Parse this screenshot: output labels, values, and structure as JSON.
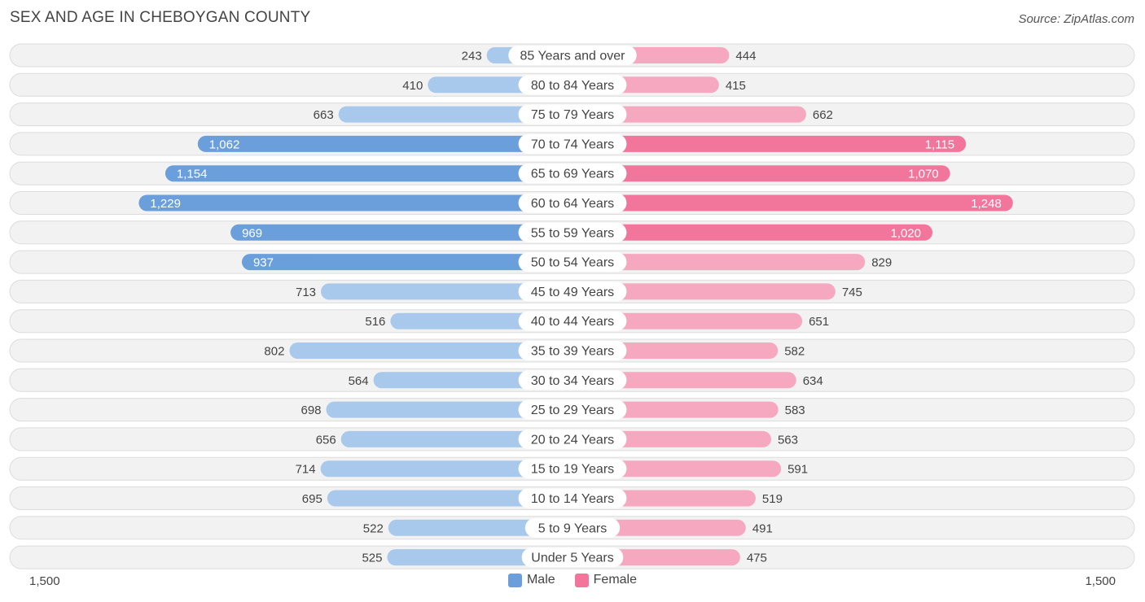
{
  "header": {
    "title": "SEX AND AGE IN CHEBOYGAN COUNTY",
    "source": "Source: ZipAtlas.com"
  },
  "colors": {
    "male_light": "#a8c8ec",
    "male_dark": "#6a9fdc",
    "female_light": "#f7a8c1",
    "female_dark": "#f2759c",
    "row_bg": "#f2f2f2"
  },
  "legend": {
    "male": "Male",
    "female": "Female"
  },
  "axis": {
    "left_label": "1,500",
    "right_label": "1,500"
  },
  "chart_data": {
    "type": "bar",
    "orientation": "horizontal-diverging",
    "title": "SEX AND AGE IN CHEBOYGAN COUNTY",
    "xlim": [
      -1500,
      1500
    ],
    "categories": [
      "85 Years and over",
      "80 to 84 Years",
      "75 to 79 Years",
      "70 to 74 Years",
      "65 to 69 Years",
      "60 to 64 Years",
      "55 to 59 Years",
      "50 to 54 Years",
      "45 to 49 Years",
      "40 to 44 Years",
      "35 to 39 Years",
      "30 to 34 Years",
      "25 to 29 Years",
      "20 to 24 Years",
      "15 to 19 Years",
      "10 to 14 Years",
      "5 to 9 Years",
      "Under 5 Years"
    ],
    "series": [
      {
        "name": "Male",
        "values": [
          243,
          410,
          663,
          1062,
          1154,
          1229,
          969,
          937,
          713,
          516,
          802,
          564,
          698,
          656,
          714,
          695,
          522,
          525
        ],
        "labels": [
          "243",
          "410",
          "663",
          "1,062",
          "1,154",
          "1,229",
          "969",
          "937",
          "713",
          "516",
          "802",
          "564",
          "698",
          "656",
          "714",
          "695",
          "522",
          "525"
        ]
      },
      {
        "name": "Female",
        "values": [
          444,
          415,
          662,
          1115,
          1070,
          1248,
          1020,
          829,
          745,
          651,
          582,
          634,
          583,
          563,
          591,
          519,
          491,
          475
        ],
        "labels": [
          "444",
          "415",
          "662",
          "1,115",
          "1,070",
          "1,248",
          "1,020",
          "829",
          "745",
          "651",
          "582",
          "634",
          "583",
          "563",
          "591",
          "519",
          "491",
          "475"
        ]
      }
    ],
    "legend_position": "bottom-center"
  }
}
